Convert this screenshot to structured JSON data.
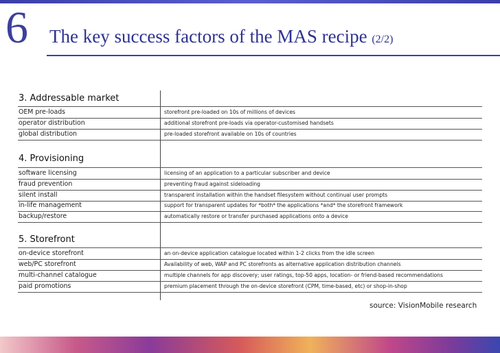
{
  "slide": {
    "number": "6",
    "title": "The key success factors of the MAS recipe",
    "title_suffix": "(2/2)",
    "source": "source: VisionMobile research"
  },
  "sections": [
    {
      "heading": "3. Addressable market",
      "rows": [
        {
          "factor": "OEM pre-loads",
          "description": "storefront pre-loaded on 10s of millions of devices"
        },
        {
          "factor": "operator distribution",
          "description": "additional storefront pre-loads via operator-customised handsets"
        },
        {
          "factor": "global distribution",
          "description": "pre-loaded storefront available on 10s of countries"
        }
      ]
    },
    {
      "heading": "4. Provisioning",
      "rows": [
        {
          "factor": "software licensing",
          "description": "licensing of an application to a particular subscriber and device"
        },
        {
          "factor": "fraud prevention",
          "description": "preventing fraud against sideloading"
        },
        {
          "factor": "silent install",
          "description": "transparent installation within the handset filesystem without continual user prompts"
        },
        {
          "factor": "in-life management",
          "description": "support for transparent updates for *both* the applications *and* the storefront framework"
        },
        {
          "factor": "backup/restore",
          "description": "automatically restore or transfer purchased applications onto a device"
        }
      ]
    },
    {
      "heading": "5. Storefront",
      "rows": [
        {
          "factor": "on-device storefront",
          "description": "an on-device application catalogue located within 1-2 clicks from the idle screen"
        },
        {
          "factor": "web/PC storefront",
          "description": "Availability of web, WAP and PC storefronts as alternative application distribution channels"
        },
        {
          "factor": "multi-channel catalogue",
          "description": "multiple channels for app discovery; user ratings, top-50 apps, location- or friend-based recommendations"
        },
        {
          "factor": "paid promotions",
          "description": "premium placement through the on-device storefront (CPM, time-based, etc) or shop-in-shop"
        }
      ]
    }
  ]
}
